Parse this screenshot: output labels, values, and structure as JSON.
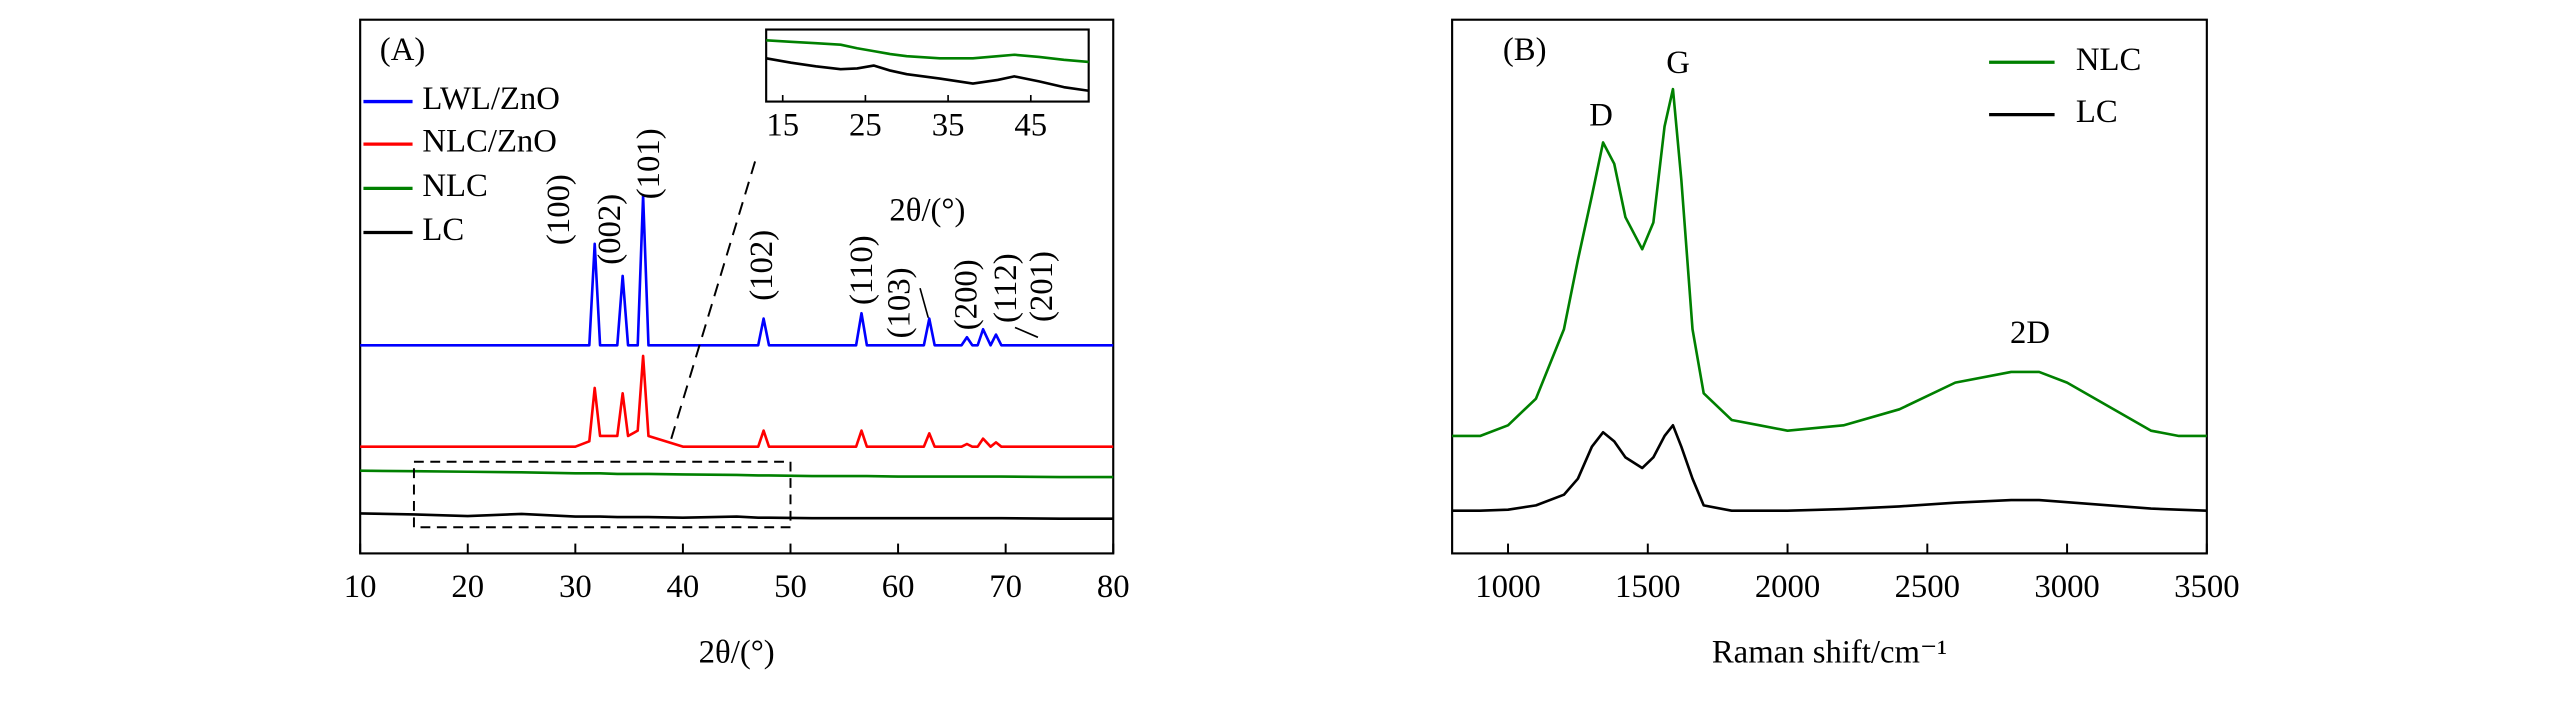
{
  "chart_data": [
    {
      "type": "line",
      "annotation_main": "(A)",
      "xlabel": "2θ/(°)",
      "xlim": [
        10,
        80
      ],
      "xticks": [
        10,
        20,
        30,
        40,
        50,
        60,
        70,
        80
      ],
      "ylim": [
        0,
        100
      ],
      "legend": "upper left",
      "x": [
        10,
        15,
        20,
        25,
        30,
        31.3,
        31.8,
        32.3,
        33.9,
        34.4,
        34.9,
        35.8,
        36.3,
        36.8,
        40,
        45,
        47,
        47.5,
        48,
        52,
        56.1,
        56.6,
        57.1,
        60,
        62.4,
        62.9,
        63.4,
        65.9,
        66.4,
        66.9,
        67.4,
        67.9,
        68.6,
        69.1,
        69.6,
        75,
        80
      ],
      "series": [
        {
          "name": "LWL/ZnO",
          "color": "#0000ff",
          "values": [
            39,
            39,
            39,
            39,
            39,
            39,
            58,
            39,
            39,
            52,
            39,
            39,
            67,
            39,
            39,
            39,
            39,
            44,
            39,
            39,
            39,
            45,
            39,
            39,
            39,
            44,
            39,
            39,
            40.5,
            39,
            39,
            42,
            39,
            41,
            39,
            39,
            39
          ]
        },
        {
          "name": "NLC/ZnO",
          "color": "#ff0000",
          "values": [
            20,
            20,
            20,
            20,
            20,
            21,
            31,
            22,
            22,
            30,
            22,
            23,
            37,
            22,
            20,
            20,
            20,
            23,
            20,
            20,
            20,
            23,
            20,
            20,
            20,
            22.5,
            20,
            20,
            20.5,
            20,
            20,
            21.5,
            20,
            20.8,
            20,
            20,
            20
          ]
        },
        {
          "name": "NLC",
          "color": "#008000",
          "values": [
            15.5,
            15.4,
            15.3,
            15.2,
            15,
            15,
            15,
            15,
            14.9,
            14.9,
            14.9,
            14.9,
            14.9,
            14.9,
            14.8,
            14.7,
            14.6,
            14.6,
            14.6,
            14.5,
            14.5,
            14.5,
            14.5,
            14.4,
            14.4,
            14.4,
            14.4,
            14.4,
            14.4,
            14.4,
            14.4,
            14.4,
            14.4,
            14.4,
            14.4,
            14.3,
            14.3
          ]
        },
        {
          "name": "LC",
          "color": "#000000",
          "values": [
            7.5,
            7.3,
            7,
            7.4,
            6.9,
            6.9,
            6.9,
            6.9,
            6.8,
            6.8,
            6.8,
            6.8,
            6.8,
            6.8,
            6.7,
            6.9,
            6.7,
            6.7,
            6.7,
            6.6,
            6.6,
            6.6,
            6.6,
            6.6,
            6.6,
            6.6,
            6.6,
            6.6,
            6.6,
            6.6,
            6.6,
            6.6,
            6.6,
            6.6,
            6.6,
            6.5,
            6.5
          ]
        }
      ],
      "annotations": [
        "(100)",
        "(002)",
        "(101)",
        "(102)",
        "(110)",
        "(103)",
        "(200)",
        "(112)",
        "(201)"
      ],
      "inset": {
        "xlabel": "2θ/(°)",
        "xlim": [
          13,
          52
        ],
        "xticks": [
          15,
          25,
          35,
          45
        ],
        "ylim": [
          0,
          10
        ],
        "x": [
          13,
          16,
          19,
          22,
          24,
          26,
          28,
          30,
          34,
          38,
          41,
          43,
          46,
          49,
          52
        ],
        "series": [
          {
            "color": "#008000",
            "values": [
              8.5,
              8.3,
              8.1,
              7.9,
              7.4,
              7,
              6.6,
              6.3,
              6,
              6,
              6.3,
              6.5,
              6.2,
              5.8,
              5.5
            ]
          },
          {
            "color": "#000000",
            "values": [
              6,
              5.4,
              4.9,
              4.5,
              4.6,
              5,
              4.3,
              3.8,
              3.2,
              2.5,
              3,
              3.5,
              2.8,
              2,
              1.5
            ]
          }
        ]
      }
    },
    {
      "type": "line",
      "annotation_main": "(B)",
      "xlabel": "Raman shift/cm⁻¹",
      "xlim": [
        800,
        3500
      ],
      "xticks": [
        1000,
        1500,
        2000,
        2500,
        3000,
        3500
      ],
      "ylim": [
        0,
        100
      ],
      "legend": "upper right",
      "x": [
        800,
        900,
        1000,
        1100,
        1200,
        1250,
        1300,
        1340,
        1380,
        1420,
        1480,
        1520,
        1560,
        1590,
        1620,
        1660,
        1700,
        1800,
        1900,
        2000,
        2200,
        2400,
        2600,
        2800,
        2900,
        3000,
        3100,
        3200,
        3300,
        3400,
        3500
      ],
      "series": [
        {
          "name": "NLC",
          "color": "#008000",
          "values": [
            22,
            22,
            24,
            29,
            42,
            55,
            67,
            77,
            73,
            63,
            57,
            62,
            80,
            87,
            70,
            42,
            30,
            25,
            24,
            23,
            24,
            27,
            32,
            34,
            34,
            32,
            29,
            26,
            23,
            22,
            22
          ]
        },
        {
          "name": "LC",
          "color": "#000000",
          "values": [
            8,
            8,
            8.2,
            9,
            11,
            14,
            20,
            22.7,
            21,
            18,
            16,
            18,
            22,
            24,
            20,
            14,
            9,
            8,
            8,
            8,
            8.3,
            8.8,
            9.5,
            10,
            10,
            9.6,
            9.2,
            8.8,
            8.4,
            8.2,
            8
          ]
        }
      ],
      "annotations": [
        "D",
        "G",
        "2D"
      ]
    }
  ]
}
